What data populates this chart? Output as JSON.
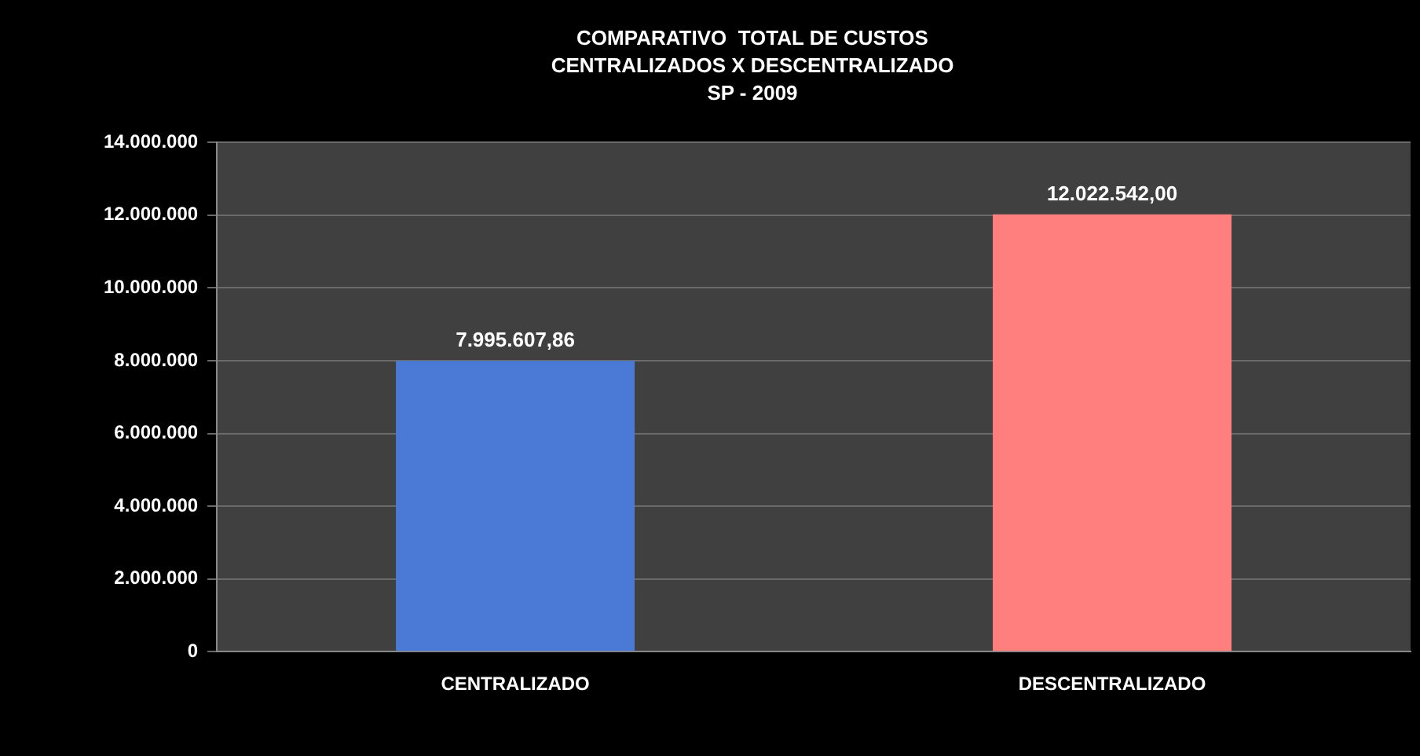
{
  "chart_data": {
    "type": "bar",
    "title": "COMPARATIVO  TOTAL DE CUSTOS\nCENTRALIZADOS X DESCENTRALIZADO\nSP - 2009",
    "categories": [
      "CENTRALIZADO",
      "DESCENTRALIZADO"
    ],
    "values": [
      7995607.86,
      12022542.0
    ],
    "value_labels": [
      "7.995.607,86",
      "12.022.542,00"
    ],
    "colors": [
      "#4a7ad6",
      "#ff7f7f"
    ],
    "ylim": [
      0,
      14000000
    ],
    "yticks": [
      0,
      {
        "value": 2000000,
        "label": "2.000.000"
      },
      {
        "value": 4000000,
        "label": "4.000.000"
      },
      {
        "value": 6000000,
        "label": "6.000.000"
      },
      {
        "value": 8000000,
        "label": "8.000.000"
      },
      {
        "value": 10000000,
        "label": "10.000.000"
      },
      {
        "value": 12000000,
        "label": "12.000.000"
      },
      {
        "value": 14000000,
        "label": "14.000.000"
      }
    ],
    "grid": "y",
    "legend": false
  }
}
